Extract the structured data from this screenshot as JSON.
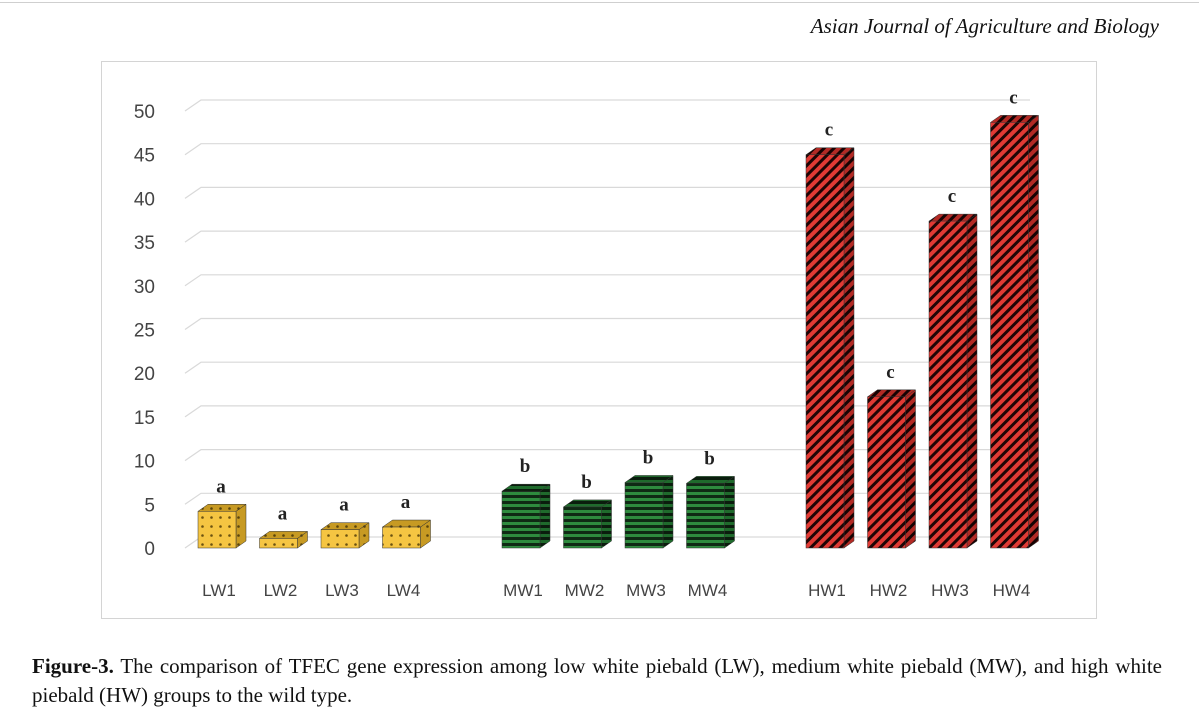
{
  "header": {
    "journal_name": "Asian Journal of Agriculture and Biology"
  },
  "caption": {
    "label": "Figure-3.",
    "text": " The comparison of TFEC gene expression among low white piebald (LW), medium white piebald (MW), and high white piebald (HW) groups to the wild type."
  },
  "chart_data": {
    "type": "bar",
    "title": "",
    "xlabel": "",
    "ylabel": "",
    "ylim": [
      0,
      50
    ],
    "yticks": [
      0,
      5,
      10,
      15,
      20,
      25,
      30,
      35,
      40,
      45,
      50
    ],
    "grid": true,
    "style": "3d-column",
    "groups": [
      {
        "fill_color": "#f5c542",
        "pattern": "dots",
        "bars": [
          {
            "category": "LW1",
            "value": 4.2,
            "label": "a"
          },
          {
            "category": "LW2",
            "value": 1.1,
            "label": "a"
          },
          {
            "category": "LW3",
            "value": 2.1,
            "label": "a"
          },
          {
            "category": "LW4",
            "value": 2.4,
            "label": "a"
          }
        ]
      },
      {
        "fill_color": "#2e8b3e",
        "pattern": "horizontal-stripes",
        "bars": [
          {
            "category": "MW1",
            "value": 6.5,
            "label": "b"
          },
          {
            "category": "MW2",
            "value": 4.7,
            "label": "b"
          },
          {
            "category": "MW3",
            "value": 7.5,
            "label": "b"
          },
          {
            "category": "MW4",
            "value": 7.4,
            "label": "b"
          }
        ]
      },
      {
        "fill_color": "#e03a34",
        "pattern": "diagonal-stripes",
        "bars": [
          {
            "category": "HW1",
            "value": 45.0,
            "label": "c"
          },
          {
            "category": "HW2",
            "value": 17.3,
            "label": "c"
          },
          {
            "category": "HW3",
            "value": 37.4,
            "label": "c"
          },
          {
            "category": "HW4",
            "value": 48.7,
            "label": "c"
          }
        ]
      }
    ]
  }
}
